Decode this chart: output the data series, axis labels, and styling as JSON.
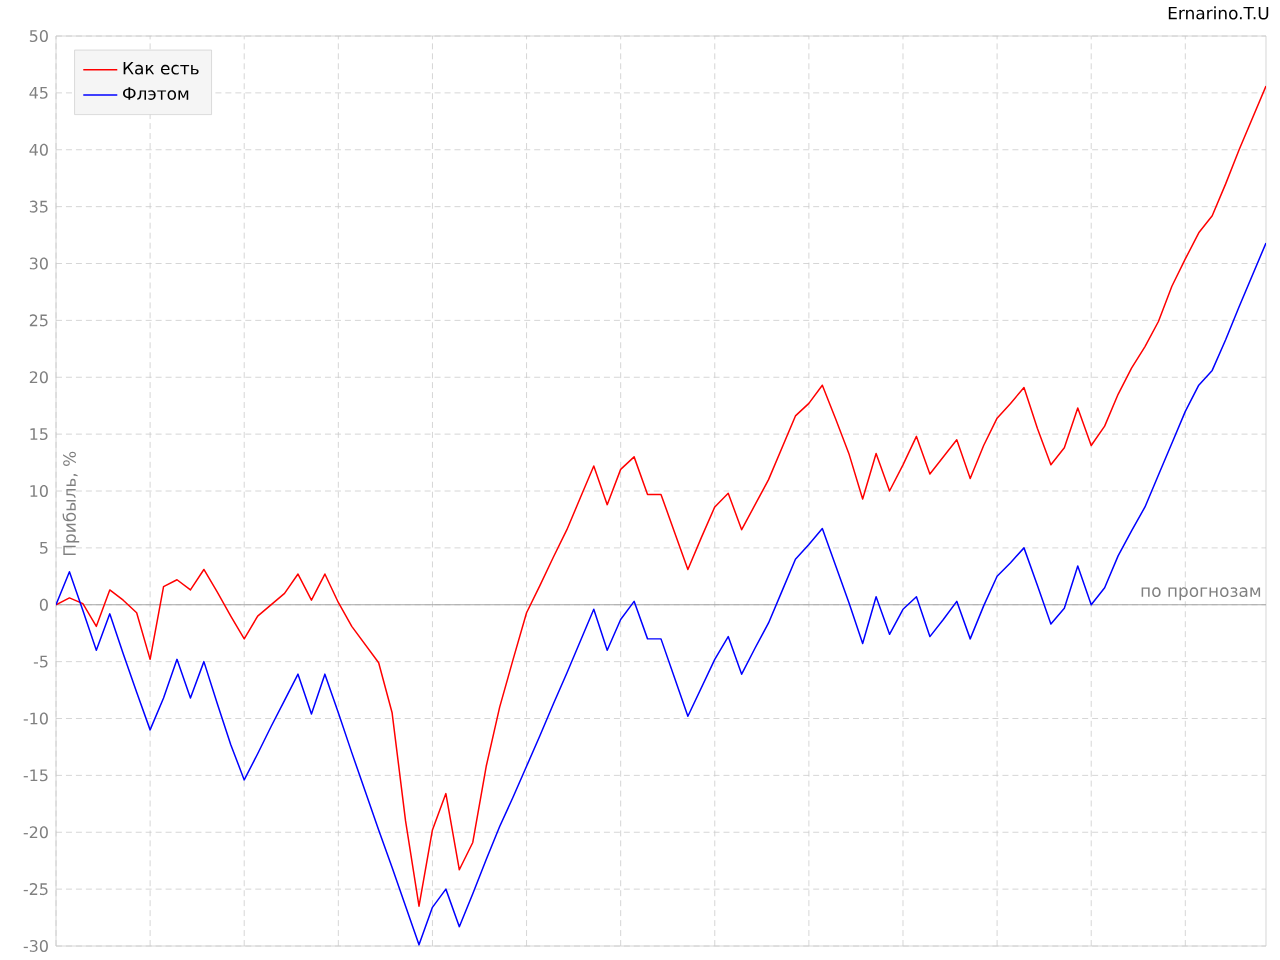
{
  "chart_data": {
    "type": "line",
    "ylabel": "Прибыль, %",
    "categories": [
      null,
      null,
      null,
      null,
      null,
      null,
      null,
      null,
      null,
      null,
      null,
      null,
      null,
      null,
      null,
      null,
      null,
      null,
      null,
      null,
      null,
      null,
      null,
      null,
      null,
      null,
      null,
      null,
      null,
      null,
      null,
      null,
      null,
      null,
      null,
      null,
      null,
      null,
      null,
      null,
      null,
      null,
      null,
      null,
      null,
      null,
      null,
      null,
      null,
      null,
      null,
      null,
      null,
      null,
      null,
      null,
      null,
      null,
      null,
      null,
      null,
      null,
      null,
      null,
      null,
      null,
      null,
      null,
      null,
      null,
      null,
      null,
      null,
      null,
      null,
      null,
      null,
      null,
      null,
      null,
      null,
      null,
      null,
      null,
      null,
      null,
      null,
      null,
      null,
      null,
      null
    ],
    "series": [
      {
        "name": "Как есть",
        "color": "#ff0000",
        "values": [
          0,
          0.6,
          0.1,
          -1.9,
          1.3,
          0.4,
          -0.7,
          -4.8,
          1.6,
          2.2,
          1.3,
          3.1,
          1.1,
          -1.0,
          -3.0,
          -1.0,
          0.0,
          1.0,
          2.7,
          0.4,
          2.7,
          0.2,
          -1.9,
          -3.5,
          -5.1,
          -9.5,
          -19,
          -26.5,
          -19.8,
          -16.6,
          -23.3,
          -20.9,
          -14.2,
          -9,
          -4.8,
          -0.7,
          1.7,
          4.2,
          6.6,
          9.4,
          12.2,
          8.8,
          11.9,
          13.0,
          9.7,
          9.7,
          6.4,
          3.1,
          5.9,
          8.6,
          9.8,
          6.6,
          8.8,
          11.0,
          13.8,
          16.6,
          17.7,
          19.3,
          16.3,
          13.2,
          9.3,
          13.3,
          10.0,
          12.3,
          14.8,
          11.5,
          13.0,
          14.5,
          11.1,
          14,
          16.4,
          17.7,
          19.1,
          15.5,
          12.3,
          13.8,
          17.3,
          14.0,
          15.7,
          18.5,
          20.8,
          22.7,
          24.9,
          28,
          30.4,
          32.7,
          34.2,
          37,
          40,
          42.8,
          45.6
        ]
      },
      {
        "name": "Флэтом",
        "color": "#0000ff",
        "values": [
          0,
          2.9,
          -0.5,
          -4.0,
          -0.8,
          -4.3,
          -7.7,
          -11.0,
          -8.2,
          -4.8,
          -8.2,
          -5.0,
          -8.7,
          -12.3,
          -15.4,
          -13.1,
          -10.7,
          -8.4,
          -6.1,
          -9.6,
          -6.1,
          -9.5,
          -13.0,
          -16.4,
          -19.8,
          -23.1,
          -26.5,
          -29.9,
          -26.6,
          -25.0,
          -28.3,
          -25.4,
          -22.4,
          -19.5,
          -16.9,
          -14.2,
          -11.5,
          -8.7,
          -6.0,
          -3.2,
          -0.4,
          -4.0,
          -1.3,
          0.3,
          -3.0,
          -3.0,
          -6.4,
          -9.8,
          -7.3,
          -4.8,
          -2.8,
          -6.1,
          -3.8,
          -1.6,
          1.2,
          4.0,
          5.3,
          6.7,
          3.4,
          0.1,
          -3.4,
          0.7,
          -2.6,
          -0.4,
          0.7,
          -2.8,
          -1.3,
          0.3,
          -3.0,
          -0.1,
          2.5,
          3.7,
          5.0,
          1.7,
          -1.7,
          -0.3,
          3.4,
          0.0,
          1.5,
          4.3,
          6.5,
          8.6,
          11.4,
          14.2,
          17,
          19.3,
          20.6,
          23.3,
          26.2,
          29,
          31.8
        ]
      }
    ],
    "ylim": [
      -30,
      50
    ],
    "yticks": [
      -30,
      -25,
      -20,
      -15,
      -10,
      -5,
      0,
      5,
      10,
      15,
      20,
      25,
      30,
      35,
      40,
      45,
      50
    ],
    "ref_lines": [
      {
        "axis": "y",
        "value": 0,
        "label": "по прогнозам"
      }
    ],
    "annotations": [
      "Ernarino.T.U"
    ],
    "grid": true,
    "legend": "top left",
    "marker": "none",
    "line_style": "solid"
  }
}
